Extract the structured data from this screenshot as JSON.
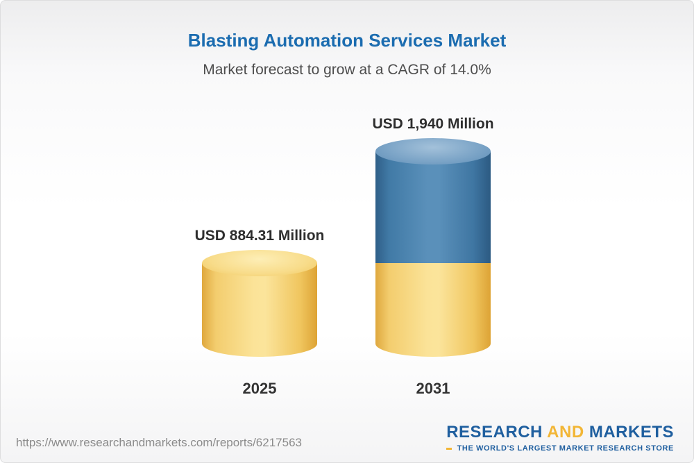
{
  "header": {
    "title": "Blasting Automation Services Market",
    "subtitle": "Market forecast to grow at a CAGR of 14.0%"
  },
  "chart_data": {
    "type": "bar",
    "title": "Blasting Automation Services Market",
    "subtitle": "Market forecast to grow at a CAGR of 14.0%",
    "unit": "USD Million",
    "cagr": "14.0%",
    "categories": [
      "2025",
      "2031"
    ],
    "values": [
      884.31,
      1940
    ],
    "bars": [
      {
        "category": "2025",
        "value": 884.31,
        "label": "USD 884.31 Million",
        "color": "#F4CD6F"
      },
      {
        "category": "2031",
        "value": 1940,
        "label": "USD 1,940 Million",
        "segments": [
          {
            "value": 884.31,
            "color": "#F4CD6F"
          },
          {
            "value": 1055.69,
            "color": "#4178A8"
          }
        ]
      }
    ],
    "ylim": [
      0,
      2000
    ],
    "grid": false,
    "legend": false
  },
  "footer": {
    "url": "https://www.researchandmarkets.com/reports/6217563",
    "logo": {
      "research": "RESEARCH",
      "and": "AND",
      "markets": "MARKETS",
      "tagline": "THE WORLD'S LARGEST MARKET RESEARCH STORE"
    }
  },
  "colors": {
    "title_blue": "#1B6CB0",
    "bar_yellow": "#F4CD6F",
    "bar_blue": "#4178A8",
    "logo_blue": "#1F5F9F",
    "logo_yellow": "#F2B636"
  }
}
